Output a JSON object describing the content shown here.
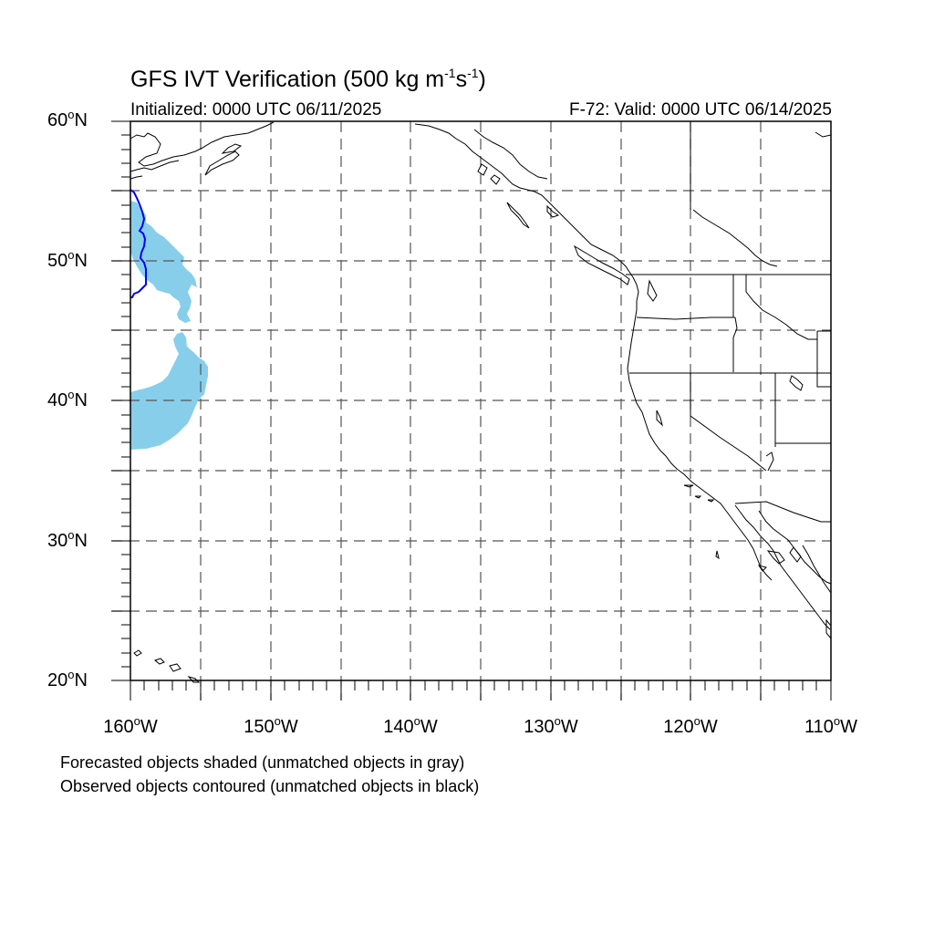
{
  "title": {
    "main": "GFS IVT Verification (500 kg m",
    "exp1": "-1",
    "mid": "s",
    "exp2": "-1",
    "close": ")"
  },
  "initialized": "Initialized: 0000 UTC 06/11/2025",
  "valid": "F-72: Valid: 0000 UTC 06/14/2025",
  "lat_labels": [
    {
      "num": "60",
      "suffix": "N"
    },
    {
      "num": "50",
      "suffix": "N"
    },
    {
      "num": "40",
      "suffix": "N"
    },
    {
      "num": "30",
      "suffix": "N"
    },
    {
      "num": "20",
      "suffix": "N"
    }
  ],
  "lon_labels": [
    {
      "num": "160",
      "suffix": "W"
    },
    {
      "num": "150",
      "suffix": "W"
    },
    {
      "num": "140",
      "suffix": "W"
    },
    {
      "num": "130",
      "suffix": "W"
    },
    {
      "num": "120",
      "suffix": "W"
    },
    {
      "num": "110",
      "suffix": "W"
    }
  ],
  "degree_symbol": "o",
  "notes": [
    "Forecasted objects shaded (unmatched objects in gray)",
    "Observed objects contoured (unmatched objects in black)"
  ],
  "map_extent": {
    "lon_min": -160,
    "lon_max": -110,
    "lat_min": 20,
    "lat_max": 60
  },
  "colors": {
    "forecast_object_fill": "#87ceeb",
    "observed_object_contour": "#0000ff",
    "coastline": "#000000",
    "gridline": "#555555"
  }
}
